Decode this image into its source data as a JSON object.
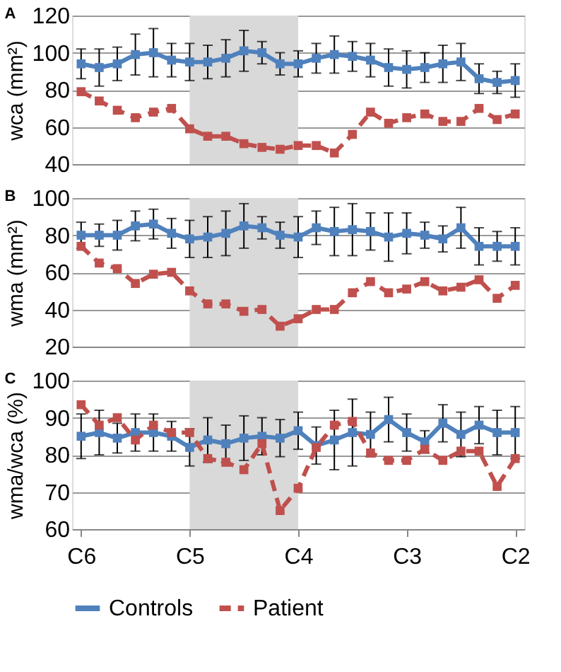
{
  "chart_data": [
    {
      "type": "line",
      "title": "A",
      "ylabel": "wca (mm²)",
      "categories": [
        "C6",
        null,
        null,
        null,
        null,
        null,
        "C5",
        null,
        null,
        null,
        null,
        null,
        "C4",
        null,
        null,
        null,
        null,
        null,
        "C3",
        null,
        null,
        null,
        null,
        null,
        "C2"
      ],
      "ylim": [
        40,
        120
      ],
      "yticks": [
        40,
        60,
        80,
        100,
        120
      ],
      "grid": "y",
      "tick_labels": "y",
      "marker": "square",
      "bands": [
        {
          "axis": "x",
          "from": "C5",
          "to": "C4",
          "color": "#d9d9d9"
        }
      ],
      "series": [
        {
          "color": "#4f81bd",
          "line_style": "solid",
          "values": [
            94,
            92,
            94,
            99,
            100,
            96,
            95,
            95,
            97,
            101,
            100,
            94,
            94,
            97,
            99,
            98,
            96,
            92,
            91,
            92,
            94,
            95,
            86,
            84,
            85
          ],
          "errors": [
            8,
            10,
            9,
            11,
            13,
            9,
            10,
            9,
            10,
            11,
            6,
            6,
            7,
            8,
            10,
            8,
            9,
            10,
            10,
            8,
            10,
            10,
            8,
            6,
            9
          ]
        },
        {
          "color": "#c0504d",
          "line_style": "dashed",
          "values": [
            79,
            74,
            69,
            65,
            68,
            70,
            59,
            55,
            55,
            51,
            49,
            48,
            50,
            50,
            46,
            56,
            68,
            62,
            65,
            67,
            63,
            63,
            70,
            64,
            67
          ]
        }
      ]
    },
    {
      "type": "line",
      "title": "B",
      "ylabel": "wma (mm²)",
      "categories": [
        "C6",
        null,
        null,
        null,
        null,
        null,
        "C5",
        null,
        null,
        null,
        null,
        null,
        "C4",
        null,
        null,
        null,
        null,
        null,
        "C3",
        null,
        null,
        null,
        null,
        null,
        "C2"
      ],
      "ylim": [
        20,
        100
      ],
      "yticks": [
        20,
        40,
        60,
        80,
        100
      ],
      "grid": "y",
      "tick_labels": "y",
      "marker": "square",
      "bands": [
        {
          "axis": "x",
          "from": "C5",
          "to": "C4",
          "color": "#d9d9d9"
        }
      ],
      "series": [
        {
          "color": "#4f81bd",
          "line_style": "solid",
          "values": [
            80,
            80,
            80,
            85,
            86,
            81,
            78,
            79,
            81,
            85,
            84,
            80,
            79,
            84,
            82,
            83,
            82,
            79,
            81,
            80,
            78,
            84,
            74,
            74,
            74
          ],
          "errors": [
            7,
            6,
            8,
            8,
            8,
            8,
            10,
            11,
            12,
            12,
            6,
            7,
            11,
            9,
            13,
            14,
            10,
            13,
            11,
            7,
            7,
            11,
            10,
            8,
            10
          ]
        },
        {
          "color": "#c0504d",
          "line_style": "dashed",
          "values": [
            74,
            65,
            62,
            54,
            59,
            60,
            50,
            43,
            43,
            39,
            40,
            31,
            35,
            40,
            40,
            49,
            55,
            49,
            51,
            55,
            50,
            52,
            56,
            46,
            53
          ]
        }
      ]
    },
    {
      "type": "line",
      "title": "C",
      "ylabel": "wma/wca (%)",
      "categories": [
        "C6",
        null,
        null,
        null,
        null,
        null,
        "C5",
        null,
        null,
        null,
        null,
        null,
        "C4",
        null,
        null,
        null,
        null,
        null,
        "C3",
        null,
        null,
        null,
        null,
        null,
        "C2"
      ],
      "ylim": [
        60,
        100
      ],
      "yticks": [
        60,
        70,
        80,
        90,
        100
      ],
      "grid": "y",
      "marker": "square",
      "legend": "bottom",
      "bands": [
        {
          "axis": "x",
          "from": "C5",
          "to": "C4",
          "color": "#d9d9d9"
        }
      ],
      "series": [
        {
          "name": "Controls",
          "color": "#4f81bd",
          "line_style": "solid",
          "values": [
            85,
            86,
            84.5,
            86,
            86,
            85,
            82,
            84,
            83,
            84.5,
            85,
            84.5,
            86.5,
            82.5,
            84,
            86,
            85.5,
            89.5,
            86,
            83.5,
            88.5,
            85.5,
            88,
            86,
            86
          ],
          "errors": [
            6,
            6,
            4,
            5,
            5,
            4,
            5,
            6,
            5,
            6,
            5,
            5,
            5,
            5,
            8,
            9,
            6,
            6,
            5,
            3,
            5,
            6,
            5,
            6,
            7
          ]
        },
        {
          "name": "Patient",
          "color": "#c0504d",
          "line_style": "dashed",
          "values": [
            93.5,
            88,
            90,
            84,
            88,
            86,
            86,
            79,
            78,
            76,
            83,
            65,
            71,
            82,
            88,
            89,
            80.5,
            78.5,
            78.5,
            81.5,
            78.5,
            81,
            81,
            71.5,
            79
          ]
        }
      ]
    }
  ]
}
